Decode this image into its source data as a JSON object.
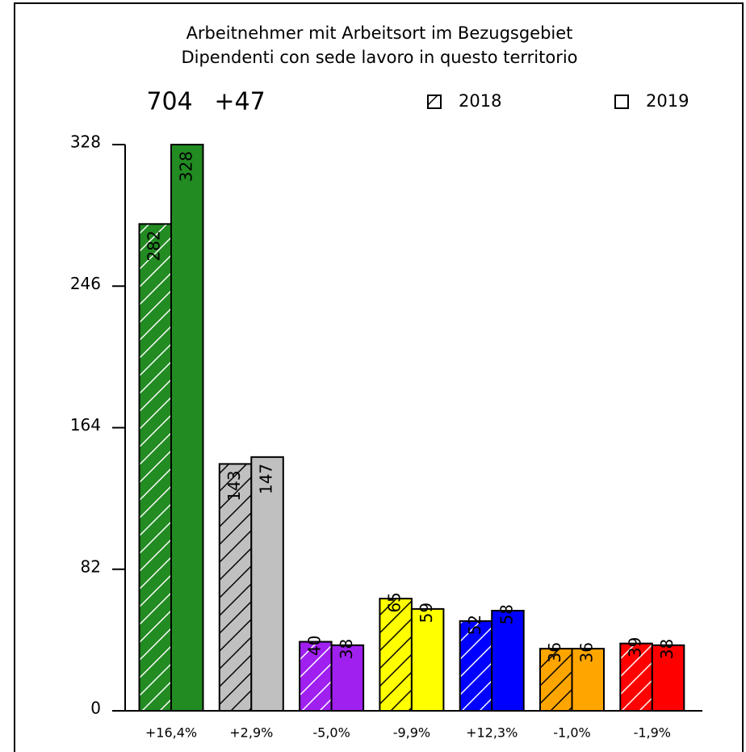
{
  "chart_data": {
    "type": "bar",
    "title": [
      "Arbeitnehmer mit Arbeitsort im Bezugsgebiet",
      "Dipendenti con sede lavoro in questo territorio"
    ],
    "annotations": [
      "704",
      "+47"
    ],
    "categories": [
      "+16,4%",
      "+2,9%",
      "-5,0%",
      "-9,9%",
      "+12,3%",
      "-1,0%",
      "-1,9%"
    ],
    "colors": [
      "#228b22",
      "#c0c0c0",
      "#a020f0",
      "#ffff00",
      "#0000ff",
      "#ffa500",
      "#ff0000"
    ],
    "series": [
      {
        "name": "2018",
        "hatch": true,
        "values": [
          282,
          143,
          40,
          65,
          52,
          36,
          39
        ]
      },
      {
        "name": "2019",
        "hatch": false,
        "values": [
          328,
          147,
          38,
          59,
          58,
          36,
          38
        ]
      }
    ],
    "ylim": [
      0,
      328
    ],
    "yticks": [
      0,
      82,
      164,
      246,
      328
    ]
  }
}
